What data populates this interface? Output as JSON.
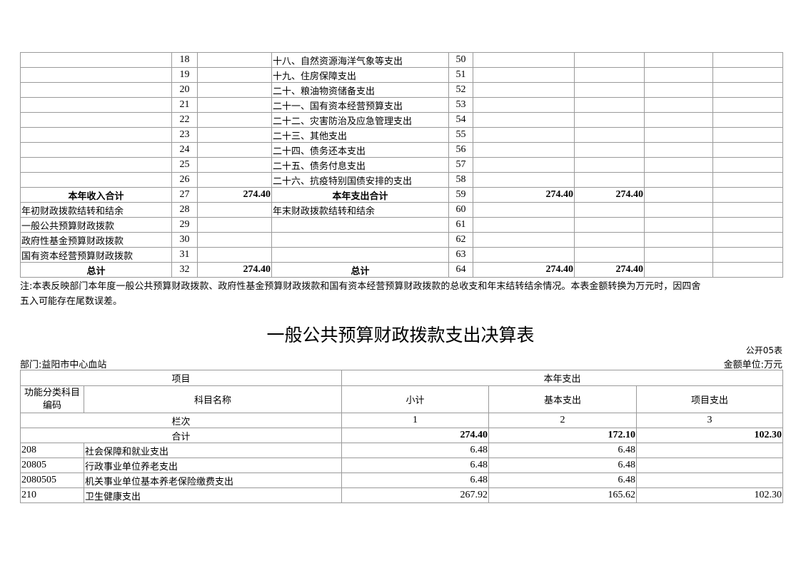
{
  "top_table": {
    "rows": [
      [
        "",
        "18",
        "",
        "十八、自然资源海洋气象等支出",
        "50",
        "",
        "",
        "",
        ""
      ],
      [
        "",
        "19",
        "",
        "十九、住房保障支出",
        "51",
        "",
        "",
        "",
        ""
      ],
      [
        "",
        "20",
        "",
        "二十、粮油物资储备支出",
        "52",
        "",
        "",
        "",
        ""
      ],
      [
        "",
        "21",
        "",
        "二十一、国有资本经营预算支出",
        "53",
        "",
        "",
        "",
        ""
      ],
      [
        "",
        "22",
        "",
        "二十二、灾害防治及应急管理支出",
        "54",
        "",
        "",
        "",
        ""
      ],
      [
        "",
        "23",
        "",
        "二十三、其他支出",
        "55",
        "",
        "",
        "",
        ""
      ],
      [
        "",
        "24",
        "",
        "二十四、债务还本支出",
        "56",
        "",
        "",
        "",
        ""
      ],
      [
        "",
        "25",
        "",
        "二十五、债务付息支出",
        "57",
        "",
        "",
        "",
        ""
      ],
      [
        "",
        "26",
        "",
        "二十六、抗疫特别国债安排的支出",
        "58",
        "",
        "",
        "",
        ""
      ],
      [
        "本年收入合计",
        "27",
        "274.40",
        "本年支出合计",
        "59",
        "274.40",
        "274.40",
        "",
        ""
      ],
      [
        "年初财政拨款结转和结余",
        "28",
        "",
        "年末财政拨款结转和结余",
        "60",
        "",
        "",
        "",
        ""
      ],
      [
        "一般公共预算财政拨款",
        "29",
        "",
        "",
        "61",
        "",
        "",
        "",
        ""
      ],
      [
        "政府性基金预算财政拨款",
        "30",
        "",
        "",
        "62",
        "",
        "",
        "",
        ""
      ],
      [
        "国有资本经营预算财政拨款",
        "31",
        "",
        "",
        "63",
        "",
        "",
        "",
        ""
      ],
      [
        "总计",
        "32",
        "274.40",
        "总计",
        "64",
        "274.40",
        "274.40",
        "",
        ""
      ]
    ]
  },
  "note": {
    "line1": "注:本表反映部门本年度一般公共预算财政拨款、政府性基金预算财政拨款和国有资本经营预算财政拨款的总收支和年末结转结余情况。本表金额转换为万元时，因四舍",
    "line2": "五入可能存在尾数误差。"
  },
  "second": {
    "title": "一般公共预算财政拨款支出决算表",
    "form_no": "公开05表",
    "department": "部门:益阳市中心血站",
    "unit": "金额单位:万元",
    "header": {
      "item": "项目",
      "year_expense": "本年支出",
      "code": "功能分类科目编码",
      "name": "科目名称",
      "subtotal": "小计",
      "basic": "基本支出",
      "project": "项目支出",
      "col_label": "栏次",
      "col1": "1",
      "col2": "2",
      "col3": "3"
    },
    "total": {
      "label": "合计",
      "subtotal": "274.40",
      "basic": "172.10",
      "project": "102.30"
    },
    "rows": [
      {
        "code": "208",
        "name": "社会保障和就业支出",
        "subtotal": "6.48",
        "basic": "6.48",
        "project": ""
      },
      {
        "code": "20805",
        "name": "行政事业单位养老支出",
        "subtotal": "6.48",
        "basic": "6.48",
        "project": ""
      },
      {
        "code": "2080505",
        "name": "机关事业单位基本养老保险缴费支出",
        "subtotal": "6.48",
        "basic": "6.48",
        "project": ""
      },
      {
        "code": "210",
        "name": "卫生健康支出",
        "subtotal": "267.92",
        "basic": "165.62",
        "project": "102.30"
      }
    ]
  }
}
